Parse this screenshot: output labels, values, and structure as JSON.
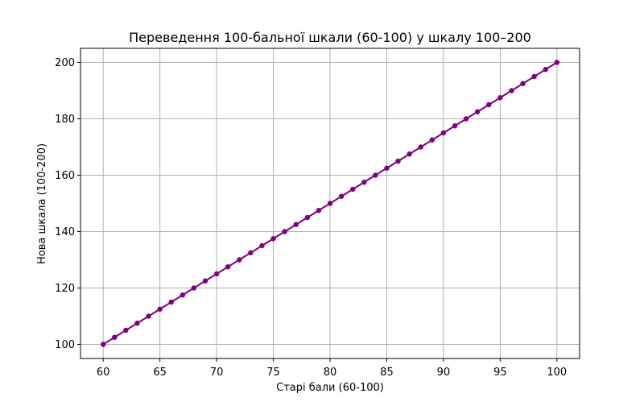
{
  "chart_data": {
    "type": "line",
    "title": "Переведення 100-бальної шкали (60-100) у шкалу 100–200",
    "xlabel": "Старі бали (60-100)",
    "ylabel": "Нова шкала (100-200)",
    "xlim": [
      58,
      102
    ],
    "ylim": [
      95,
      205
    ],
    "x_ticks": [
      60,
      65,
      70,
      75,
      80,
      85,
      90,
      95,
      100
    ],
    "y_ticks": [
      100,
      120,
      140,
      160,
      180,
      200
    ],
    "grid": true,
    "marker": "circle",
    "series": [
      {
        "color": "#800080",
        "x": [
          60,
          61,
          62,
          63,
          64,
          65,
          66,
          67,
          68,
          69,
          70,
          71,
          72,
          73,
          74,
          75,
          76,
          77,
          78,
          79,
          80,
          81,
          82,
          83,
          84,
          85,
          86,
          87,
          88,
          89,
          90,
          91,
          92,
          93,
          94,
          95,
          96,
          97,
          98,
          99,
          100
        ],
        "y": [
          100,
          102.5,
          105,
          107.5,
          110,
          112.5,
          115,
          117.5,
          120,
          122.5,
          125,
          127.5,
          130,
          132.5,
          135,
          137.5,
          140,
          142.5,
          145,
          147.5,
          150,
          152.5,
          155,
          157.5,
          160,
          162.5,
          165,
          167.5,
          170,
          172.5,
          175,
          177.5,
          180,
          182.5,
          185,
          187.5,
          190,
          192.5,
          195,
          197.5,
          200
        ]
      }
    ]
  }
}
